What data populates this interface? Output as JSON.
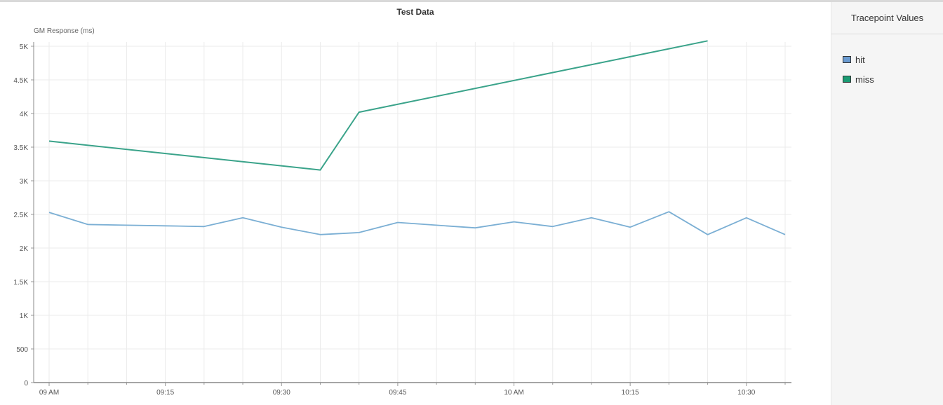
{
  "side_panel": {
    "title": "Tracepoint Values"
  },
  "chart_data": {
    "type": "line",
    "title": "Test Data",
    "ylabel": "GM Response (ms)",
    "xlabel": "",
    "ylim": [
      0,
      5000
    ],
    "yticks": [
      0,
      500,
      1000,
      1500,
      2000,
      2500,
      3000,
      3500,
      4000,
      4500,
      5000
    ],
    "ytick_labels": [
      "0",
      "500",
      "1K",
      "1.5K",
      "2K",
      "2.5K",
      "3K",
      "3.5K",
      "4K",
      "4.5K",
      "5K"
    ],
    "xlim": [
      "09:00",
      "10:35"
    ],
    "xticks": [
      "09:00",
      "09:15",
      "09:30",
      "09:45",
      "10:00",
      "10:15",
      "10:30"
    ],
    "xtick_labels": [
      "09 AM",
      "09:15",
      "09:30",
      "09:45",
      "10 AM",
      "10:15",
      "10:30"
    ],
    "grid": true,
    "legend_position": "right",
    "series": [
      {
        "name": "hit",
        "color": "#7bafd4",
        "legend_color": "#6a9bd1",
        "x": [
          "09:00",
          "09:05",
          "09:10",
          "09:15",
          "09:20",
          "09:25",
          "09:30",
          "09:35",
          "09:40",
          "09:45",
          "09:50",
          "09:55",
          "10:00",
          "10:05",
          "10:10",
          "10:15",
          "10:20",
          "10:25",
          "10:30",
          "10:35"
        ],
        "values": [
          2530,
          2350,
          2340,
          2330,
          2320,
          2450,
          2310,
          2200,
          2230,
          2380,
          2340,
          2300,
          2390,
          2320,
          2450,
          2310,
          2540,
          2200,
          2450,
          2200
        ]
      },
      {
        "name": "miss",
        "color": "#3aa38a",
        "legend_color": "#1a9b73",
        "x": [
          "09:00",
          "09:35",
          "09:40",
          "10:25"
        ],
        "values": [
          3590,
          3160,
          4020,
          5080
        ]
      }
    ]
  }
}
